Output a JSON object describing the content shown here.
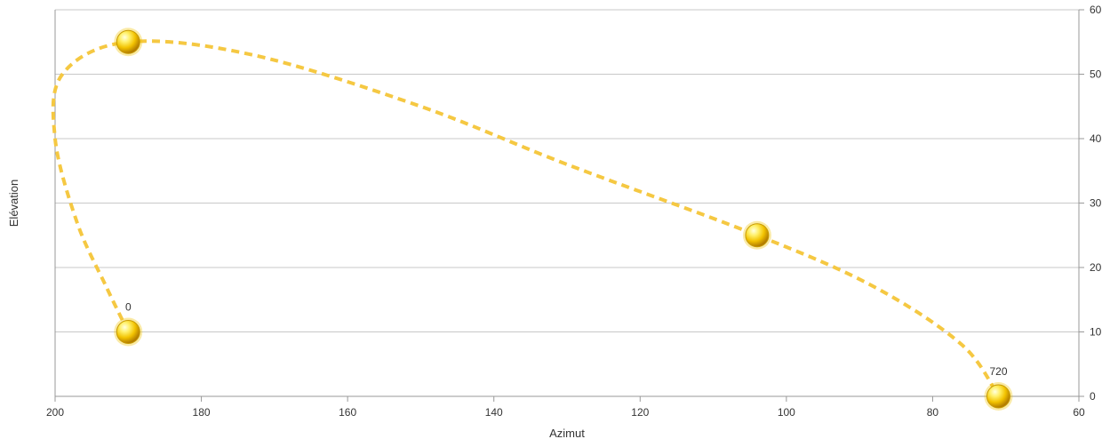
{
  "chart_data": {
    "type": "line",
    "xlabel": "Azimut",
    "ylabel": "Elévation",
    "xlim": [
      200,
      60
    ],
    "ylim": [
      0,
      60
    ],
    "x_reversed": true,
    "y_axis_side": "right",
    "x_ticks": [
      "200",
      "180",
      "160",
      "140",
      "120",
      "100",
      "80",
      "60"
    ],
    "y_ticks": [
      "0",
      "10",
      "20",
      "30",
      "40",
      "50",
      "60"
    ],
    "grid": true,
    "series": [
      {
        "style": "dashed",
        "color": "#f5c842",
        "points": [
          {
            "x": 190,
            "y": 10
          },
          {
            "x": 193,
            "y": 17
          },
          {
            "x": 197,
            "y": 27
          },
          {
            "x": 200,
            "y": 40
          },
          {
            "x": 199,
            "y": 50
          },
          {
            "x": 190,
            "y": 55
          },
          {
            "x": 173,
            "y": 53
          },
          {
            "x": 150,
            "y": 45
          },
          {
            "x": 130,
            "y": 36
          },
          {
            "x": 104,
            "y": 25
          },
          {
            "x": 88,
            "y": 17
          },
          {
            "x": 76,
            "y": 8
          },
          {
            "x": 71,
            "y": 0
          }
        ]
      }
    ],
    "markers": [
      {
        "x": 190,
        "y": 10,
        "label": "0"
      },
      {
        "x": 190,
        "y": 55,
        "label": ""
      },
      {
        "x": 104,
        "y": 25,
        "label": ""
      },
      {
        "x": 71,
        "y": 0,
        "label": "720"
      }
    ],
    "marker_color": "#f2c200"
  }
}
